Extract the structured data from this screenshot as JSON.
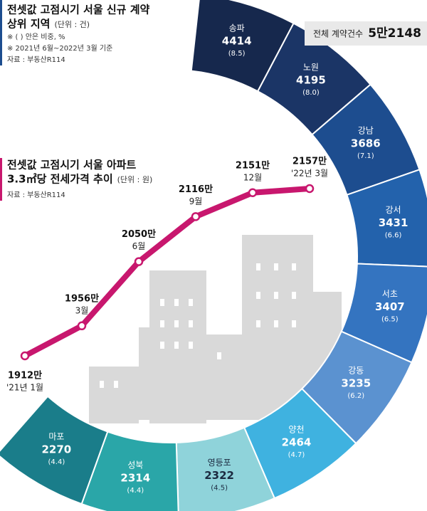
{
  "chart_data": [
    {
      "type": "ring",
      "title": [
        "전셋값 고점시기 서울 신규 계약",
        "상위 지역"
      ],
      "unit": "(단위 : 건)",
      "notes": [
        "※ ( ) 안은 비중, %",
        "※ 2021년 6월~2022년 3월 기준"
      ],
      "source": "자료 : 부동산R114",
      "total_title": "전체 계약건수",
      "total": "5만2148",
      "categories": [
        "송파",
        "노원",
        "강남",
        "강서",
        "서초",
        "강동",
        "양천",
        "영등포",
        "성북",
        "마포"
      ],
      "values": [
        4414,
        4195,
        3686,
        3431,
        3407,
        3235,
        2464,
        2322,
        2314,
        2270
      ],
      "shares": [
        8.5,
        8.0,
        7.1,
        6.6,
        6.5,
        6.2,
        4.7,
        4.5,
        4.4,
        4.4
      ],
      "share_labels": [
        "(8.5)",
        "(8.0)",
        "(7.1)",
        "(6.6)",
        "(6.5)",
        "(6.2)",
        "(4.7)",
        "(4.5)",
        "(4.4)",
        "(4.4)"
      ],
      "colors": [
        "#16284d",
        "#1b3566",
        "#1d4d8f",
        "#2362ac",
        "#3474c0",
        "#5b92d0",
        "#3fb2e0",
        "#8fd3da",
        "#2aa6a8",
        "#1a7d8a"
      ]
    },
    {
      "type": "line",
      "title": [
        "전셋값 고점시기 서울 아파트",
        "3.3㎡당 전세가격 추이"
      ],
      "unit": "(단위 : 원)",
      "source": "자료 : 부동산R114",
      "categories": [
        "'21년 1월",
        "3월",
        "6월",
        "9월",
        "12월",
        "'22년 3월"
      ],
      "values": [
        19120000,
        19560000,
        20500000,
        21160000,
        21510000,
        21570000
      ],
      "value_labels": [
        "1912만",
        "1956만",
        "2050만",
        "2116만",
        "2151만",
        "2157만"
      ],
      "color": "#c8176e"
    }
  ]
}
